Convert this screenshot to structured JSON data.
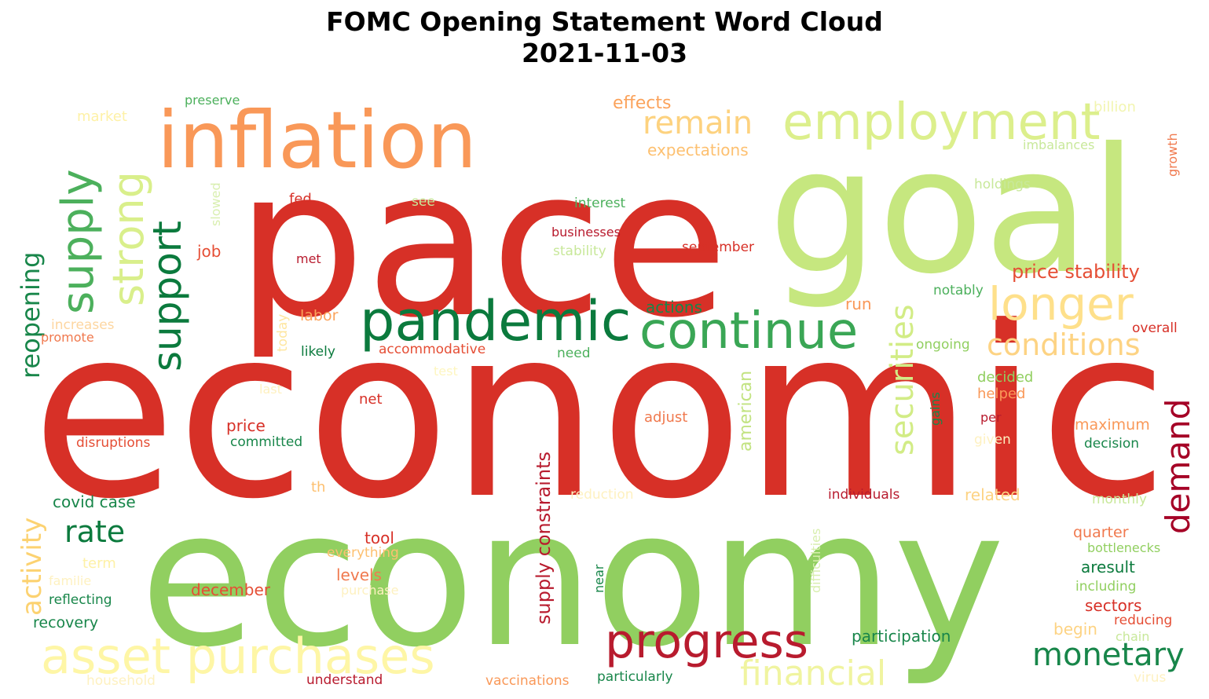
{
  "title": {
    "line1": "FOMC Opening Statement Word Cloud",
    "line2": "2021-11-03"
  },
  "words": [
    {
      "text": "economic",
      "color": "#d73027"
    },
    {
      "text": "economy",
      "color": "#91cf60"
    },
    {
      "text": "pace",
      "color": "#d73027"
    },
    {
      "text": "goal",
      "color": "#c6e77f"
    },
    {
      "text": "inflation",
      "color": "#f99858"
    },
    {
      "text": "employment",
      "color": "#dcef8c"
    },
    {
      "text": "asset purchases",
      "color": "#fef6a6"
    },
    {
      "text": "pandemic",
      "color": "#0b7a3d"
    },
    {
      "text": "continue",
      "color": "#3aa655"
    },
    {
      "text": "progress",
      "color": "#b81b2e"
    },
    {
      "text": "longer",
      "color": "#fee08b"
    },
    {
      "text": "supply",
      "color": "#4cb05c"
    },
    {
      "text": "strong",
      "color": "#d9ef8b"
    },
    {
      "text": "support",
      "color": "#0b7a3d"
    },
    {
      "text": "remain",
      "color": "#fdd27f"
    },
    {
      "text": "conditions",
      "color": "#fdd383"
    },
    {
      "text": "securities",
      "color": "#d2ec86"
    },
    {
      "text": "demand",
      "color": "#a50026"
    },
    {
      "text": "monetary",
      "color": "#18864a"
    },
    {
      "text": "financial",
      "color": "#f0f4a0"
    },
    {
      "text": "reopening",
      "color": "#18864a"
    },
    {
      "text": "activity",
      "color": "#fcd271"
    },
    {
      "text": "rate",
      "color": "#0b7a3d"
    },
    {
      "text": "price stability",
      "color": "#e54e35"
    },
    {
      "text": "supply constraints",
      "color": "#b81b2e"
    },
    {
      "text": "american",
      "color": "#c2e381"
    },
    {
      "text": "effects",
      "color": "#fba35c"
    },
    {
      "text": "expectations",
      "color": "#fdc070"
    },
    {
      "text": "preserve",
      "color": "#4cb05c"
    },
    {
      "text": "market",
      "color": "#fef1a6"
    },
    {
      "text": "billion",
      "color": "#f2f5b0"
    },
    {
      "text": "imbalances",
      "color": "#c8e89a"
    },
    {
      "text": "growth",
      "color": "#f0794e"
    },
    {
      "text": "holdings",
      "color": "#c8e89a"
    },
    {
      "text": "interest",
      "color": "#4cb05c"
    },
    {
      "text": "fed",
      "color": "#d73027"
    },
    {
      "text": "see",
      "color": "#c8e89a"
    },
    {
      "text": "slowed",
      "color": "#d9efb0"
    },
    {
      "text": "businesses",
      "color": "#b81b2e"
    },
    {
      "text": "stability",
      "color": "#c8e89a"
    },
    {
      "text": "september",
      "color": "#d73027"
    },
    {
      "text": "job",
      "color": "#e54e35"
    },
    {
      "text": "met",
      "color": "#b81b2e"
    },
    {
      "text": "notably",
      "color": "#4cb05c"
    },
    {
      "text": "actions",
      "color": "#18864a"
    },
    {
      "text": "run",
      "color": "#f99858"
    },
    {
      "text": "labor",
      "color": "#fba35c"
    },
    {
      "text": "today",
      "color": "#fee6a0"
    },
    {
      "text": "increases",
      "color": "#fdd6a0"
    },
    {
      "text": "promote",
      "color": "#f0794e"
    },
    {
      "text": "overall",
      "color": "#d73027"
    },
    {
      "text": "likely",
      "color": "#0b7a3d"
    },
    {
      "text": "accommodative",
      "color": "#e54e35"
    },
    {
      "text": "need",
      "color": "#4cb05c"
    },
    {
      "text": "ongoing",
      "color": "#91cf60"
    },
    {
      "text": "test",
      "color": "#fef6c0"
    },
    {
      "text": "last",
      "color": "#fef1c0"
    },
    {
      "text": "net",
      "color": "#d73027"
    },
    {
      "text": "decided",
      "color": "#91cf60"
    },
    {
      "text": "helped",
      "color": "#f99858"
    },
    {
      "text": "gains",
      "color": "#18864a"
    },
    {
      "text": "per",
      "color": "#b81b2e"
    },
    {
      "text": "adjust",
      "color": "#f0794e"
    },
    {
      "text": "maximum",
      "color": "#f99858"
    },
    {
      "text": "given",
      "color": "#fef1c0"
    },
    {
      "text": "decision",
      "color": "#18864a"
    },
    {
      "text": "price",
      "color": "#d73027"
    },
    {
      "text": "committed",
      "color": "#18864a"
    },
    {
      "text": "disruptions",
      "color": "#e54e35"
    },
    {
      "text": "covid case",
      "color": "#18864a"
    },
    {
      "text": "th",
      "color": "#fdc070"
    },
    {
      "text": "reduction",
      "color": "#fef1c0"
    },
    {
      "text": "individuals",
      "color": "#b81b2e"
    },
    {
      "text": "difficulties",
      "color": "#d9efb0"
    },
    {
      "text": "related",
      "color": "#fdd383"
    },
    {
      "text": "monthly",
      "color": "#c8e89a"
    },
    {
      "text": "tool",
      "color": "#d73027"
    },
    {
      "text": "everything",
      "color": "#fdc070"
    },
    {
      "text": "levels",
      "color": "#f0794e"
    },
    {
      "text": "purchase",
      "color": "#fef1c0"
    },
    {
      "text": "term",
      "color": "#fef1a6"
    },
    {
      "text": "familie",
      "color": "#fef1c0"
    },
    {
      "text": "reflecting",
      "color": "#18864a"
    },
    {
      "text": "recovery",
      "color": "#18864a"
    },
    {
      "text": "december",
      "color": "#e54e35"
    },
    {
      "text": "near",
      "color": "#18864a"
    },
    {
      "text": "quarter",
      "color": "#f0794e"
    },
    {
      "text": "bottlenecks",
      "color": "#91cf60"
    },
    {
      "text": "aresult",
      "color": "#0b7a3d"
    },
    {
      "text": "including",
      "color": "#91cf60"
    },
    {
      "text": "sectors",
      "color": "#d73027"
    },
    {
      "text": "reducing",
      "color": "#e54e35"
    },
    {
      "text": "begin",
      "color": "#fdd383"
    },
    {
      "text": "chain",
      "color": "#c8e89a"
    },
    {
      "text": "participation",
      "color": "#18864a"
    },
    {
      "text": "particularly",
      "color": "#18864a"
    },
    {
      "text": "vaccinations",
      "color": "#f99858"
    },
    {
      "text": "understand",
      "color": "#b81b2e"
    },
    {
      "text": "household",
      "color": "#fef1c0"
    },
    {
      "text": "virus",
      "color": "#fef1c0"
    }
  ]
}
